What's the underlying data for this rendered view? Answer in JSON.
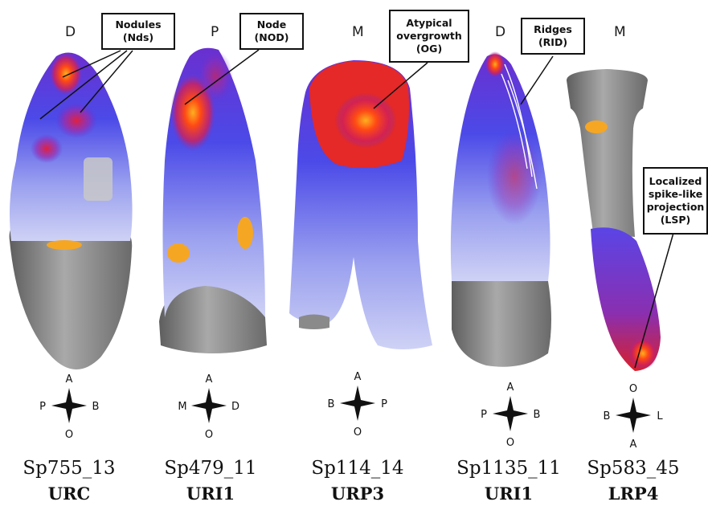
{
  "specimens": [
    {
      "id": "Sp755_13",
      "tooth": "URC",
      "top_orientation": "D",
      "compass": {
        "top": "A",
        "left": "P",
        "right": "B",
        "bottom": "O"
      }
    },
    {
      "id": "Sp479_11",
      "tooth": "URI1",
      "top_orientation": "P",
      "compass": {
        "top": "A",
        "left": "M",
        "right": "D",
        "bottom": "O"
      }
    },
    {
      "id": "Sp114_14",
      "tooth": "URP3",
      "top_orientation": "M",
      "compass": {
        "top": "A",
        "left": "B",
        "right": "P",
        "bottom": "O"
      }
    },
    {
      "id": "Sp1135_11",
      "tooth": "URI1",
      "top_orientation": "D",
      "compass": {
        "top": "A",
        "left": "P",
        "right": "B",
        "bottom": "O"
      }
    },
    {
      "id": "Sp583_45",
      "tooth": "LRP4",
      "top_orientation": "M",
      "compass": {
        "top": "O",
        "left": "B",
        "right": "L",
        "bottom": "A"
      }
    }
  ],
  "callouts": [
    {
      "lines": [
        "Nodules",
        "(Nds)"
      ]
    },
    {
      "lines": [
        "Node",
        "(NOD)"
      ]
    },
    {
      "lines": [
        "Atypical",
        "overgrowth",
        "(OG)"
      ]
    },
    {
      "lines": [
        "Ridges",
        "(RID)"
      ]
    },
    {
      "lines": [
        "Localized",
        "spike-like",
        "projection",
        "(LSP)"
      ]
    }
  ],
  "colors": {
    "enamel_gray": "#8c8c8c",
    "heat_low": "#c9cdf5",
    "heat_mid": "#4a3fe0",
    "heat_high": "#ff2a1a",
    "heat_peak": "#ffb020",
    "patch_orange": "#f5a623"
  }
}
